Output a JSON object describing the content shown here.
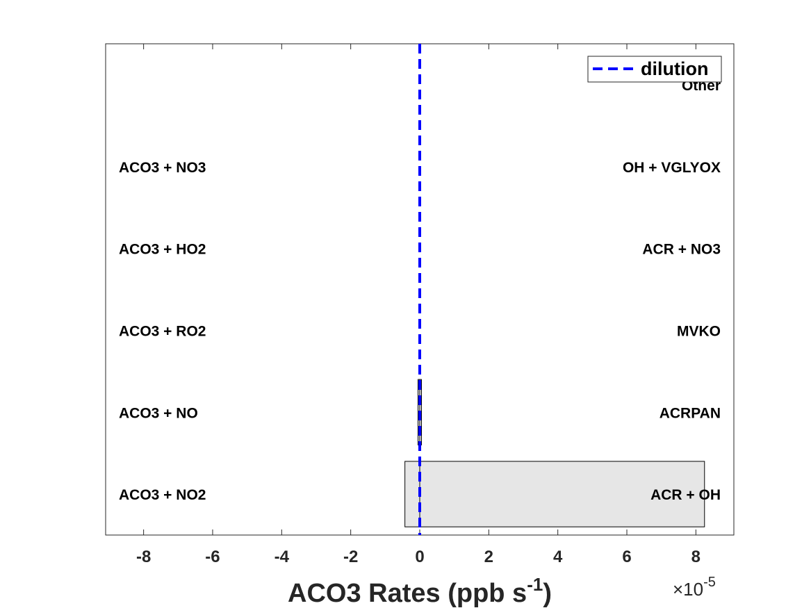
{
  "chart_data": {
    "type": "bar",
    "orientation": "horizontal",
    "xlabel": "ACO3 Rates (ppb s",
    "xlabel_superscript": "-1",
    "xlabel_close": ")",
    "x_multiplier_prefix": "×10",
    "x_multiplier_exponent": "-5",
    "xlim": [
      -9.1,
      9.1
    ],
    "x_ticks": [
      -8,
      -6,
      -4,
      -2,
      0,
      2,
      4,
      6,
      8
    ],
    "x_tick_labels": [
      "-8",
      "-6",
      "-4",
      "-2",
      "0",
      "2",
      "4",
      "6",
      "8"
    ],
    "grid": false,
    "legend": {
      "position": "top-right",
      "entries": [
        {
          "label": "dilution",
          "style": "dashed",
          "color": "#0000ff"
        }
      ]
    },
    "dilution_value": 0,
    "rows": [
      {
        "loss_label": "ACO3 + NO2",
        "prod_label": "ACR + OH",
        "loss": -0.43,
        "prod": 8.25
      },
      {
        "loss_label": "ACO3 + NO",
        "prod_label": "ACRPAN",
        "loss": -0.05,
        "prod": 0.05
      },
      {
        "loss_label": "ACO3 + RO2",
        "prod_label": "MVKO",
        "loss": 0,
        "prod": 0
      },
      {
        "loss_label": "ACO3 + HO2",
        "prod_label": "ACR + NO3",
        "loss": 0,
        "prod": 0
      },
      {
        "loss_label": "ACO3 + NO3",
        "prod_label": "OH + VGLYOX",
        "loss": 0,
        "prod": 0
      },
      {
        "loss_label": "",
        "prod_label": "Other",
        "loss": 0,
        "prod": 0
      }
    ],
    "colors": {
      "bar_fill": "#e6e6e6",
      "bar_edge": "#000000",
      "dilution": "#0000ff",
      "axis": "#262626"
    }
  }
}
